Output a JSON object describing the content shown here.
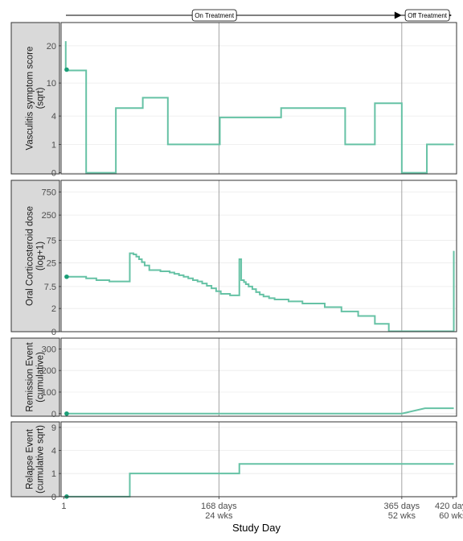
{
  "chart_data": {
    "type": "line",
    "xlabel": "Study Day",
    "x_ticks": [
      {
        "x": 1,
        "lines": [
          "1"
        ]
      },
      {
        "x": 168,
        "lines": [
          "168 days",
          "24 wks"
        ]
      },
      {
        "x": 365,
        "lines": [
          "365 days",
          "52 wks"
        ]
      },
      {
        "x": 420,
        "lines": [
          "420 days",
          "60 wks"
        ]
      }
    ],
    "xlim": [
      -2,
      424
    ],
    "color": "#66c2a5",
    "grid": true,
    "phases": [
      {
        "label": "On Treatment",
        "start": 1,
        "end": 365
      },
      {
        "label": "Off Treatment",
        "start": 365,
        "end": 420
      }
    ],
    "panels": [
      {
        "strip": [
          "Vasculitis symptom score",
          "(sqrt)"
        ],
        "scale": "sqrt",
        "ylim": [
          -0.2,
          28
        ],
        "y_ticks": [
          0,
          1,
          4,
          10,
          20
        ],
        "start_point": [
          4,
          13.2
        ],
        "series": [
          {
            "x": [
              3,
              3,
              4,
              4,
              25,
              25,
              57,
              57,
              86,
              86,
              113,
              113,
              169,
              169,
              235,
              235,
              304,
              304,
              336,
              336,
              365,
              365,
              392,
              392,
              421
            ],
            "y": [
              21.5,
              13.2,
              13.2,
              13.0,
              13.0,
              0,
              0,
              5.2,
              5.2,
              7.0,
              7.0,
              1,
              1,
              3.8,
              3.8,
              5.2,
              5.2,
              1,
              1,
              6.0,
              6.0,
              0,
              0,
              1,
              1
            ]
          }
        ]
      },
      {
        "strip": [
          "Oral Corticosteroid dose",
          "(log+1)"
        ],
        "scale": "log1p",
        "ylim": [
          -0.15,
          1300
        ],
        "y_ticks": [
          0,
          2,
          7.5,
          25,
          75,
          250,
          750
        ],
        "y_tick_labels": [
          "0",
          "2",
          "7.5",
          "25",
          "75",
          "250",
          "750"
        ],
        "start_point": [
          4,
          12.5
        ],
        "series": [
          {
            "x": [
              4,
              25,
              25,
              36,
              36,
              50,
              50,
              72,
              72,
              76,
              76,
              79,
              79,
              82,
              82,
              85,
              85,
              88,
              88,
              93,
              93,
              105,
              105,
              115,
              115,
              120,
              120,
              125,
              125,
              130,
              130,
              135,
              135,
              140,
              140,
              145,
              145,
              150,
              150,
              155,
              155,
              160,
              160,
              165,
              165,
              170,
              170,
              180,
              180,
              190,
              190,
              192,
              192,
              195,
              195,
              197,
              197,
              200,
              200,
              204,
              204,
              208,
              208,
              212,
              212,
              216,
              216,
              222,
              222,
              228,
              228,
              243,
              243,
              258,
              258,
              282,
              282,
              300,
              300,
              318,
              318,
              336,
              336,
              351,
              351,
              421,
              421
            ],
            "y": [
              12.5,
              12.5,
              11.5,
              11.5,
              10.5,
              10.5,
              9.8,
              9.8,
              40,
              40,
              38,
              38,
              34,
              34,
              30,
              30,
              26,
              26,
              22,
              22,
              17.5,
              17.5,
              16.5,
              16.5,
              15.5,
              15.5,
              14.5,
              14.5,
              13.5,
              13.5,
              12.5,
              12.5,
              11.5,
              11.5,
              10.5,
              10.5,
              9.8,
              9.8,
              8.8,
              8.8,
              7.8,
              7.8,
              6.8,
              6.8,
              5.8,
              5.8,
              5.0,
              5.0,
              4.6,
              4.6,
              30,
              30,
              10.5,
              10.5,
              9.5,
              9.5,
              8.5,
              8.5,
              7.5,
              7.5,
              6.5,
              6.5,
              5.5,
              5.5,
              4.8,
              4.8,
              4.3,
              4.3,
              3.9,
              3.9,
              3.6,
              3.6,
              3.2,
              3.2,
              2.8,
              2.8,
              2.2,
              2.2,
              1.6,
              1.6,
              1.1,
              1.1,
              0.45,
              0.45,
              0.02,
              0.02,
              45
            ]
          }
        ]
      },
      {
        "strip": [
          "Remission Event",
          "(cumulative)"
        ],
        "scale": "linear",
        "ylim": [
          -12,
          350
        ],
        "y_ticks": [
          0,
          100,
          200,
          300
        ],
        "start_point": [
          4,
          0
        ],
        "series": [
          {
            "x": [
              4,
              365,
              390,
              421
            ],
            "y": [
              0,
              0,
              25,
              25
            ]
          }
        ]
      },
      {
        "strip": [
          "Relapse Event",
          "(cumulative sqrt)"
        ],
        "scale": "sqrt",
        "ylim": [
          -0.02,
          10.5
        ],
        "y_ticks": [
          0,
          1,
          4,
          9
        ],
        "start_point": [
          4,
          0
        ],
        "series": [
          {
            "x": [
              4,
              72,
              72,
              190,
              190,
              421
            ],
            "y": [
              0,
              0,
              1,
              1,
              2,
              2
            ]
          }
        ]
      }
    ]
  }
}
